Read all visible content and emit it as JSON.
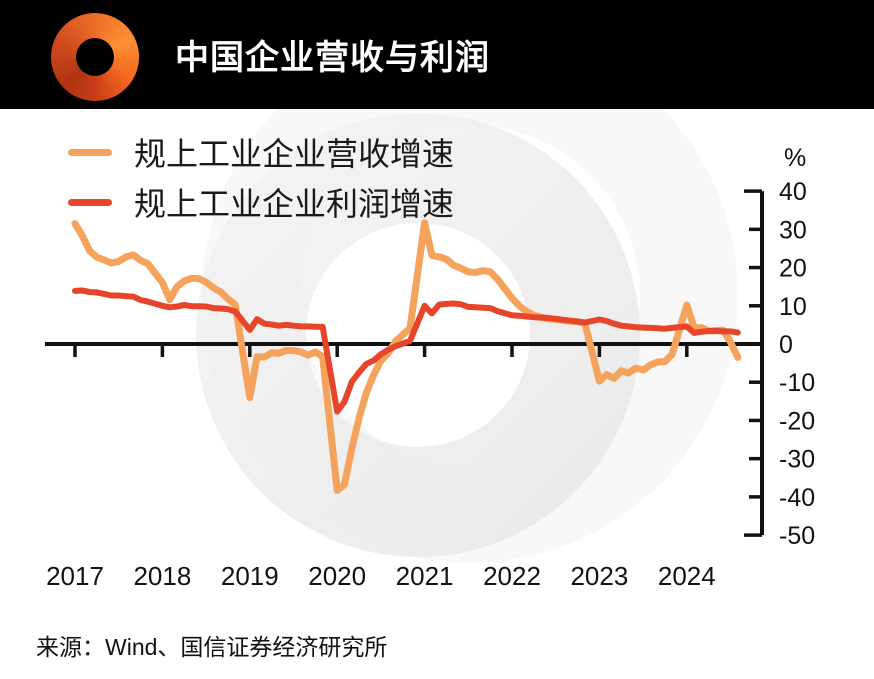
{
  "header": {
    "title": "中国企业营收与利润",
    "logo": "orange-swirl-ring",
    "background": "#000000"
  },
  "legend": [
    {
      "label": "规上工业企业营收增速",
      "color": "#F5A35C"
    },
    {
      "label": "规上工业企业利润增速",
      "color": "#E7452A"
    }
  ],
  "source": {
    "text": "来源：Wind、国信证券经济研究所"
  },
  "chart_data": {
    "type": "line",
    "title": "中国企业营收与利润",
    "unit_label": "%",
    "ylim": [
      -50,
      40
    ],
    "y_ticks": [
      40,
      30,
      20,
      10,
      0,
      -10,
      -20,
      -30,
      -40,
      -50
    ],
    "x_ticks": [
      "2017",
      "2018",
      "2019",
      "2020",
      "2021",
      "2022",
      "2023",
      "2024"
    ],
    "grid": false,
    "legend_position": "top-left",
    "axis_color": "#111111",
    "series": [
      {
        "name": "规上工业企业营收增速",
        "color": "#F5A35C",
        "points": [
          [
            "2017-02",
            31.5
          ],
          [
            "2017-03",
            28.3
          ],
          [
            "2017-04",
            24.4
          ],
          [
            "2017-05",
            22.7
          ],
          [
            "2017-06",
            22.0
          ],
          [
            "2017-07",
            21.2
          ],
          [
            "2017-08",
            21.6
          ],
          [
            "2017-09",
            22.8
          ],
          [
            "2017-10",
            23.3
          ],
          [
            "2017-11",
            21.9
          ],
          [
            "2017-12",
            21.0
          ],
          [
            "2018-02",
            16.1
          ],
          [
            "2018-03",
            11.6
          ],
          [
            "2018-04",
            15.0
          ],
          [
            "2018-05",
            16.5
          ],
          [
            "2018-06",
            17.2
          ],
          [
            "2018-07",
            17.1
          ],
          [
            "2018-08",
            16.2
          ],
          [
            "2018-09",
            14.7
          ],
          [
            "2018-10",
            13.6
          ],
          [
            "2018-11",
            11.8
          ],
          [
            "2018-12",
            10.3
          ],
          [
            "2019-02",
            -14.0
          ],
          [
            "2019-03",
            -3.3
          ],
          [
            "2019-04",
            -3.4
          ],
          [
            "2019-05",
            -2.3
          ],
          [
            "2019-06",
            -2.4
          ],
          [
            "2019-07",
            -1.7
          ],
          [
            "2019-08",
            -1.7
          ],
          [
            "2019-09",
            -2.1
          ],
          [
            "2019-10",
            -2.9
          ],
          [
            "2019-11",
            -2.1
          ],
          [
            "2019-12",
            -3.3
          ],
          [
            "2020-02",
            -38.3
          ],
          [
            "2020-03",
            -36.7
          ],
          [
            "2020-04",
            -27.4
          ],
          [
            "2020-05",
            -19.3
          ],
          [
            "2020-06",
            -12.8
          ],
          [
            "2020-07",
            -8.1
          ],
          [
            "2020-08",
            -4.4
          ],
          [
            "2020-09",
            -2.4
          ],
          [
            "2020-10",
            0.7
          ],
          [
            "2020-11",
            2.4
          ],
          [
            "2020-12",
            4.1
          ],
          [
            "2021-02",
            31.7
          ],
          [
            "2021-03",
            23.2
          ],
          [
            "2021-04",
            22.8
          ],
          [
            "2021-05",
            22.2
          ],
          [
            "2021-06",
            20.6
          ],
          [
            "2021-07",
            19.8
          ],
          [
            "2021-08",
            18.9
          ],
          [
            "2021-09",
            18.7
          ],
          [
            "2021-10",
            19.2
          ],
          [
            "2021-11",
            18.9
          ],
          [
            "2021-12",
            17.0
          ],
          [
            "2022-02",
            12.0
          ],
          [
            "2022-03",
            10.0
          ],
          [
            "2022-04",
            8.5
          ],
          [
            "2022-05",
            7.5
          ],
          [
            "2022-06",
            7.0
          ],
          [
            "2022-07",
            6.6
          ],
          [
            "2022-08",
            6.4
          ],
          [
            "2022-09",
            6.2
          ],
          [
            "2022-10",
            6.0
          ],
          [
            "2022-11",
            5.8
          ],
          [
            "2022-12",
            5.5
          ],
          [
            "2023-02",
            -9.7
          ],
          [
            "2023-03",
            -8.0
          ],
          [
            "2023-04",
            -9.0
          ],
          [
            "2023-05",
            -7.0
          ],
          [
            "2023-06",
            -7.6
          ],
          [
            "2023-07",
            -6.3
          ],
          [
            "2023-08",
            -6.8
          ],
          [
            "2023-09",
            -5.5
          ],
          [
            "2023-10",
            -4.7
          ],
          [
            "2023-11",
            -4.6
          ],
          [
            "2023-12",
            -2.7
          ],
          [
            "2024-02",
            10.2
          ],
          [
            "2024-03",
            4.3
          ],
          [
            "2024-04",
            4.3
          ],
          [
            "2024-05",
            3.4
          ],
          [
            "2024-06",
            3.5
          ],
          [
            "2024-07",
            3.6
          ],
          [
            "2024-08",
            0.5
          ],
          [
            "2024-09",
            -3.5
          ]
        ]
      },
      {
        "name": "规上工业企业利润增速",
        "color": "#E7452A",
        "points": [
          [
            "2017-02",
            13.9
          ],
          [
            "2017-03",
            14.0
          ],
          [
            "2017-04",
            13.6
          ],
          [
            "2017-05",
            13.5
          ],
          [
            "2017-06",
            13.1
          ],
          [
            "2017-07",
            12.7
          ],
          [
            "2017-08",
            12.7
          ],
          [
            "2017-09",
            12.5
          ],
          [
            "2017-10",
            12.4
          ],
          [
            "2017-11",
            11.5
          ],
          [
            "2017-12",
            11.1
          ],
          [
            "2018-02",
            10.0
          ],
          [
            "2018-03",
            9.6
          ],
          [
            "2018-04",
            9.8
          ],
          [
            "2018-05",
            10.2
          ],
          [
            "2018-06",
            9.9
          ],
          [
            "2018-07",
            9.9
          ],
          [
            "2018-08",
            9.8
          ],
          [
            "2018-09",
            9.4
          ],
          [
            "2018-10",
            9.3
          ],
          [
            "2018-11",
            9.1
          ],
          [
            "2018-12",
            8.5
          ],
          [
            "2019-02",
            3.7
          ],
          [
            "2019-03",
            6.5
          ],
          [
            "2019-04",
            5.3
          ],
          [
            "2019-05",
            5.1
          ],
          [
            "2019-06",
            4.8
          ],
          [
            "2019-07",
            5.0
          ],
          [
            "2019-08",
            4.8
          ],
          [
            "2019-09",
            4.6
          ],
          [
            "2019-10",
            4.6
          ],
          [
            "2019-11",
            4.5
          ],
          [
            "2019-12",
            4.5
          ],
          [
            "2020-02",
            -17.7
          ],
          [
            "2020-03",
            -15.1
          ],
          [
            "2020-04",
            -9.9
          ],
          [
            "2020-05",
            -7.4
          ],
          [
            "2020-06",
            -5.2
          ],
          [
            "2020-07",
            -4.3
          ],
          [
            "2020-08",
            -2.7
          ],
          [
            "2020-09",
            -1.5
          ],
          [
            "2020-10",
            -0.6
          ],
          [
            "2020-11",
            0.1
          ],
          [
            "2020-12",
            0.8
          ],
          [
            "2021-02",
            10.0
          ],
          [
            "2021-03",
            8.0
          ],
          [
            "2021-04",
            10.3
          ],
          [
            "2021-05",
            10.5
          ],
          [
            "2021-06",
            10.6
          ],
          [
            "2021-07",
            10.4
          ],
          [
            "2021-08",
            9.7
          ],
          [
            "2021-09",
            9.6
          ],
          [
            "2021-10",
            9.5
          ],
          [
            "2021-11",
            9.4
          ],
          [
            "2021-12",
            8.6
          ],
          [
            "2022-02",
            7.5
          ],
          [
            "2022-03",
            7.4
          ],
          [
            "2022-04",
            7.2
          ],
          [
            "2022-05",
            7.0
          ],
          [
            "2022-06",
            6.9
          ],
          [
            "2022-07",
            6.8
          ],
          [
            "2022-08",
            6.6
          ],
          [
            "2022-09",
            6.3
          ],
          [
            "2022-10",
            6.1
          ],
          [
            "2022-11",
            5.9
          ],
          [
            "2022-12",
            5.6
          ],
          [
            "2023-02",
            6.4
          ],
          [
            "2023-03",
            6.0
          ],
          [
            "2023-04",
            5.3
          ],
          [
            "2023-05",
            4.8
          ],
          [
            "2023-06",
            4.6
          ],
          [
            "2023-07",
            4.4
          ],
          [
            "2023-08",
            4.3
          ],
          [
            "2023-09",
            4.2
          ],
          [
            "2023-10",
            4.1
          ],
          [
            "2023-11",
            4.0
          ],
          [
            "2023-12",
            4.2
          ],
          [
            "2024-02",
            4.6
          ],
          [
            "2024-03",
            2.9
          ],
          [
            "2024-04",
            3.2
          ],
          [
            "2024-05",
            3.4
          ],
          [
            "2024-06",
            3.4
          ],
          [
            "2024-07",
            3.3
          ],
          [
            "2024-08",
            3.3
          ],
          [
            "2024-09",
            3.0
          ]
        ]
      }
    ]
  }
}
